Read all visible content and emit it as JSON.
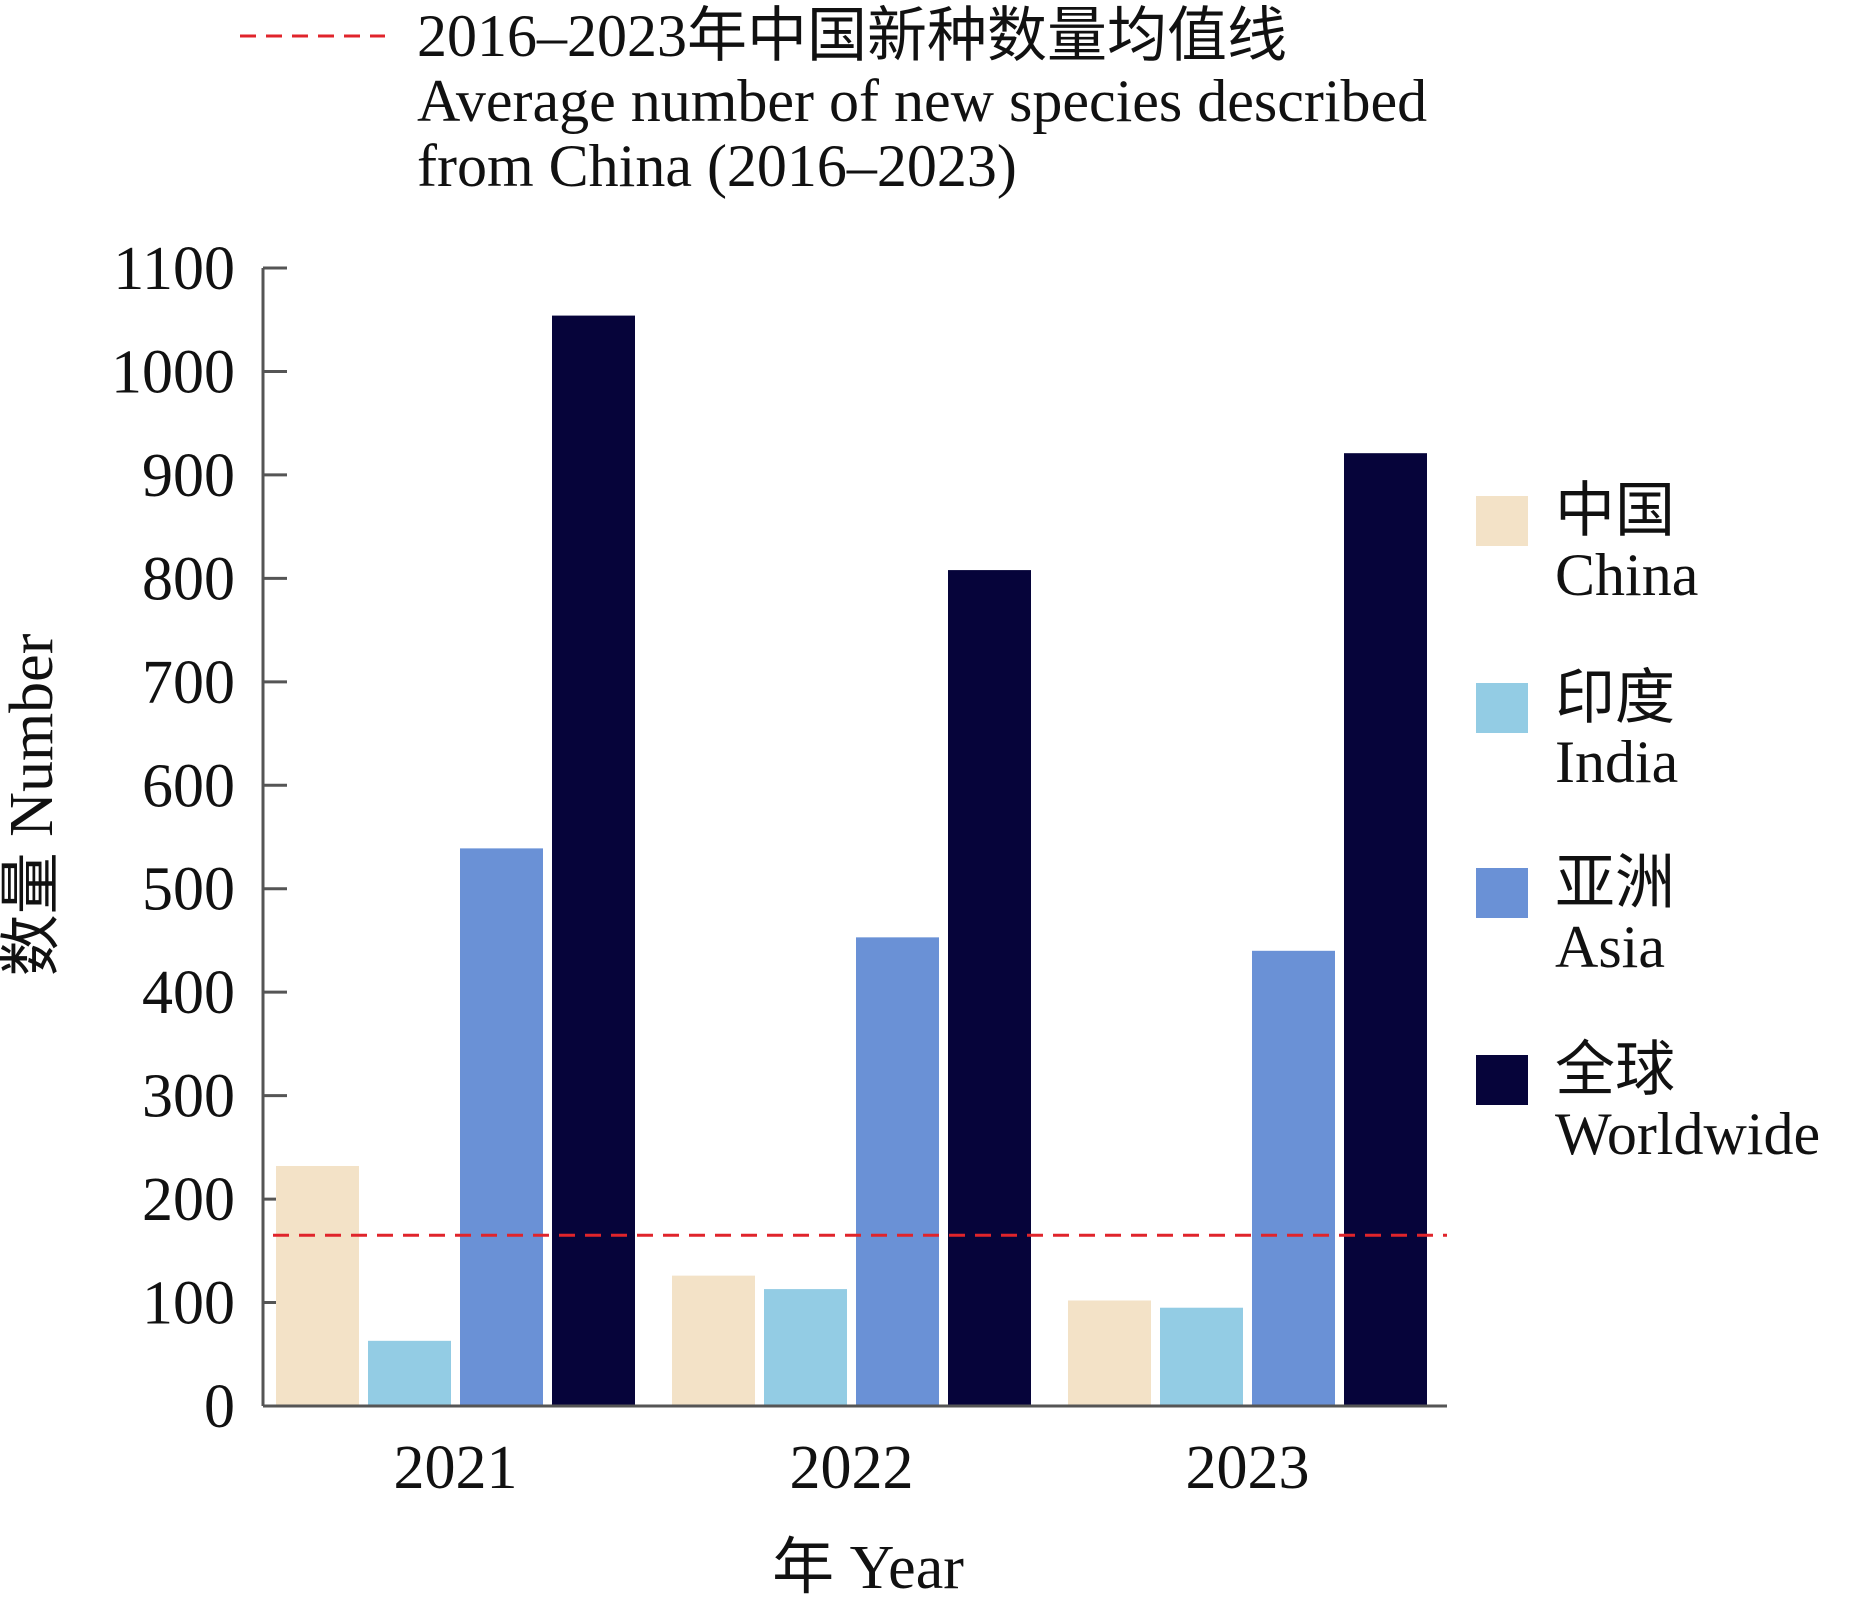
{
  "chart_data": {
    "type": "bar",
    "categories": [
      "2021",
      "2022",
      "2023"
    ],
    "series": [
      {
        "name": "中国\nChina",
        "name_zh": "中国",
        "name_en": "China",
        "color": "#f3e2c7",
        "values": [
          232,
          126,
          102
        ]
      },
      {
        "name": "印度\nIndia",
        "name_zh": "印度",
        "name_en": "India",
        "color": "#93cce4",
        "values": [
          63,
          113,
          95
        ]
      },
      {
        "name": "亚洲\nAsia",
        "name_zh": "亚洲",
        "name_en": "Asia",
        "color": "#6a91d6",
        "values": [
          539,
          453,
          440
        ]
      },
      {
        "name": "全球\nWorldwide",
        "name_zh": "全球",
        "name_en": "Worldwide",
        "color": "#06043a",
        "values": [
          1054,
          808,
          921
        ]
      }
    ],
    "reference_line": {
      "value": 165,
      "color": "#e0242b",
      "style": "dashed",
      "label_lines": [
        "2016–2023年中国新种数量均值线",
        "Average number of new species described",
        "from China (2016–2023)"
      ]
    },
    "xlabel": "年 Year",
    "ylabel": "数量 Number",
    "ylim": [
      0,
      1100
    ],
    "yticks": [
      0,
      100,
      200,
      300,
      400,
      500,
      600,
      700,
      800,
      900,
      1000,
      1100
    ],
    "grid": false,
    "legend_position": "right"
  }
}
